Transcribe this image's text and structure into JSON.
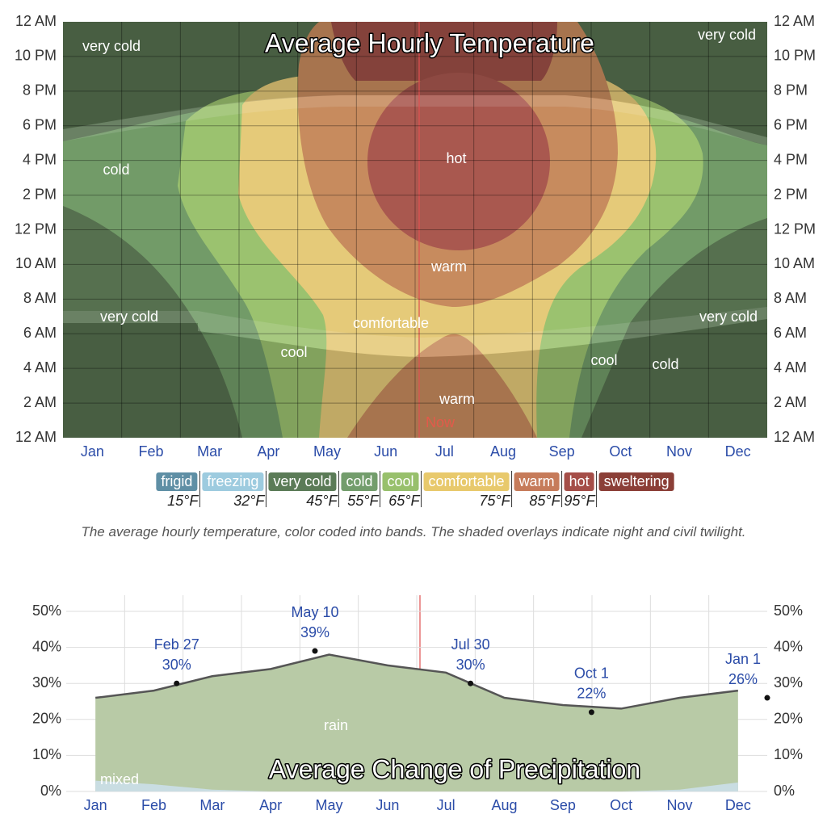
{
  "chart_data": [
    {
      "type": "contour",
      "title": "Average Hourly Temperature",
      "categories": [
        "Jan",
        "Feb",
        "Mar",
        "Apr",
        "May",
        "Jun",
        "Jul",
        "Aug",
        "Sep",
        "Oct",
        "Nov",
        "Dec"
      ],
      "hours": [
        "12 AM",
        "10 PM",
        "8 PM",
        "6 PM",
        "4 PM",
        "2 PM",
        "12 PM",
        "10 AM",
        "8 AM",
        "6 AM",
        "4 AM",
        "2 AM",
        "12 AM"
      ],
      "region_labels": [
        "very cold",
        "very cold",
        "cold",
        "hot",
        "warm",
        "very cold",
        "very cold",
        "comfortable",
        "cool",
        "cool",
        "cold",
        "warm"
      ],
      "now_label": "Now",
      "legend": [
        {
          "name": "frigid",
          "color": "#5f8fa5"
        },
        {
          "name": "freezing",
          "color": "#9dcbdf"
        },
        {
          "name": "very cold",
          "color": "#5b7b57"
        },
        {
          "name": "cold",
          "color": "#739d6c"
        },
        {
          "name": "cool",
          "color": "#98c06c"
        },
        {
          "name": "comfortable",
          "color": "#e8c96c"
        },
        {
          "name": "warm",
          "color": "#c67b5a"
        },
        {
          "name": "hot",
          "color": "#a54e48"
        },
        {
          "name": "sweltering",
          "color": "#8b3f37"
        }
      ],
      "thresholds": [
        {
          "value": 15,
          "label": "15°F"
        },
        {
          "value": 32,
          "label": "32°F"
        },
        {
          "value": 45,
          "label": "45°F"
        },
        {
          "value": 55,
          "label": "55°F"
        },
        {
          "value": 65,
          "label": "65°F"
        },
        {
          "value": 75,
          "label": "75°F"
        },
        {
          "value": 85,
          "label": "85°F"
        },
        {
          "value": 95,
          "label": "95°F"
        }
      ],
      "caption": "The average hourly temperature, color coded into bands. The shaded overlays indicate night and civil twilight."
    },
    {
      "type": "area",
      "title": "Average Change of Precipitation",
      "categories": [
        "Jan",
        "Feb",
        "Mar",
        "Apr",
        "May",
        "Jun",
        "Jul",
        "Aug",
        "Sep",
        "Oct",
        "Nov",
        "Dec"
      ],
      "series": [
        {
          "name": "rain",
          "color": "#b8caa6",
          "values": [
            26,
            28,
            32,
            34,
            38,
            35,
            33,
            26,
            24,
            23,
            26,
            28
          ]
        },
        {
          "name": "mixed",
          "color": "#c9dde2",
          "values": [
            3,
            2,
            0.5,
            0,
            0,
            0,
            0,
            0,
            0,
            0,
            0.5,
            2.5
          ]
        }
      ],
      "ylim": [
        0,
        50
      ],
      "yticks": [
        {
          "value": 0,
          "label": "0%"
        },
        {
          "value": 10,
          "label": "10%"
        },
        {
          "value": 20,
          "label": "20%"
        },
        {
          "value": 30,
          "label": "30%"
        },
        {
          "value": 40,
          "label": "40%"
        },
        {
          "value": 50,
          "label": "50%"
        }
      ],
      "annotations": [
        {
          "date": "Feb 27",
          "value": 30,
          "label": "30%"
        },
        {
          "date": "May 10",
          "value": 39,
          "label": "39%"
        },
        {
          "date": "Jul 30",
          "value": 30,
          "label": "30%"
        },
        {
          "date": "Oct 1",
          "value": 22,
          "label": "22%"
        },
        {
          "date": "Jan 1",
          "value": 26,
          "label": "26%"
        }
      ]
    }
  ]
}
